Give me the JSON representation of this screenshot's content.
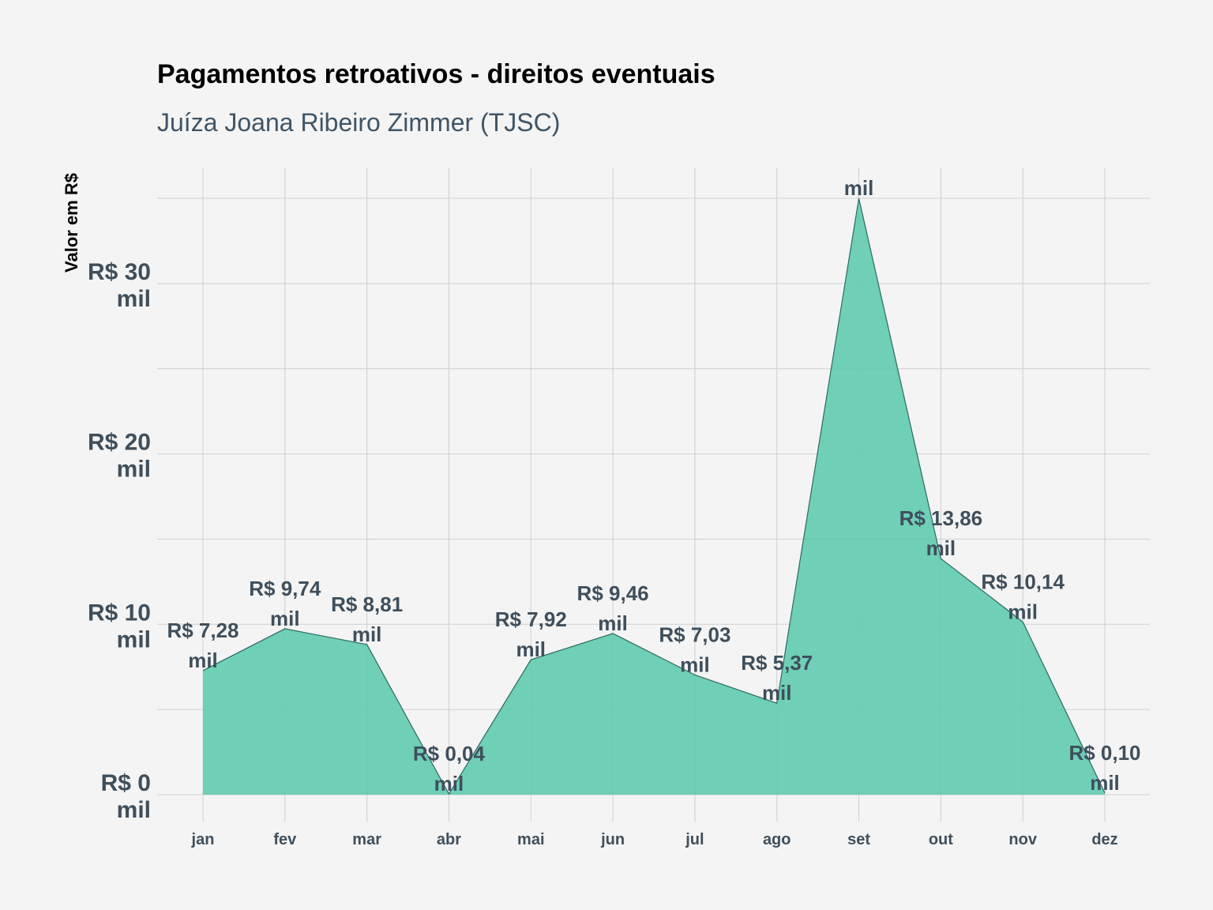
{
  "chart_data": {
    "type": "area",
    "title": "Pagamentos retroativos - direitos eventuais",
    "subtitle": "Juíza Joana Ribeiro Zimmer (TJSC)",
    "ylabel": "Valor em R$",
    "xlabel": "",
    "categories": [
      "jan",
      "fev",
      "mar",
      "abr",
      "mai",
      "jun",
      "jul",
      "ago",
      "set",
      "out",
      "nov",
      "dez"
    ],
    "values": [
      7.28,
      9.74,
      8.81,
      0.04,
      7.92,
      9.46,
      7.03,
      5.37,
      35.0,
      13.86,
      10.14,
      0.1
    ],
    "data_labels": [
      [
        "R$ 7,28",
        "mil"
      ],
      [
        "R$ 9,74",
        "mil"
      ],
      [
        "R$ 8,81",
        "mil"
      ],
      [
        "R$ 0,04",
        "mil"
      ],
      [
        "R$ 7,92",
        "mil"
      ],
      [
        "R$ 9,46",
        "mil"
      ],
      [
        "R$ 7,03",
        "mil"
      ],
      [
        "R$ 5,37",
        "mil"
      ],
      [
        "",
        "mil"
      ],
      [
        "R$ 13,86",
        "mil"
      ],
      [
        "R$ 10,14",
        "mil"
      ],
      [
        "R$ 0,10",
        "mil"
      ]
    ],
    "yticks": [
      0,
      10,
      20,
      30
    ],
    "ytick_labels": [
      [
        "R$ 0",
        "mil"
      ],
      [
        "R$ 10",
        "mil"
      ],
      [
        "R$ 20",
        "mil"
      ],
      [
        "R$ 30",
        "mil"
      ]
    ],
    "ylim": [
      0,
      35
    ],
    "grid": true,
    "legend": "none",
    "fill_color": "#5cc9ae",
    "line_color": "#2f6a62"
  }
}
